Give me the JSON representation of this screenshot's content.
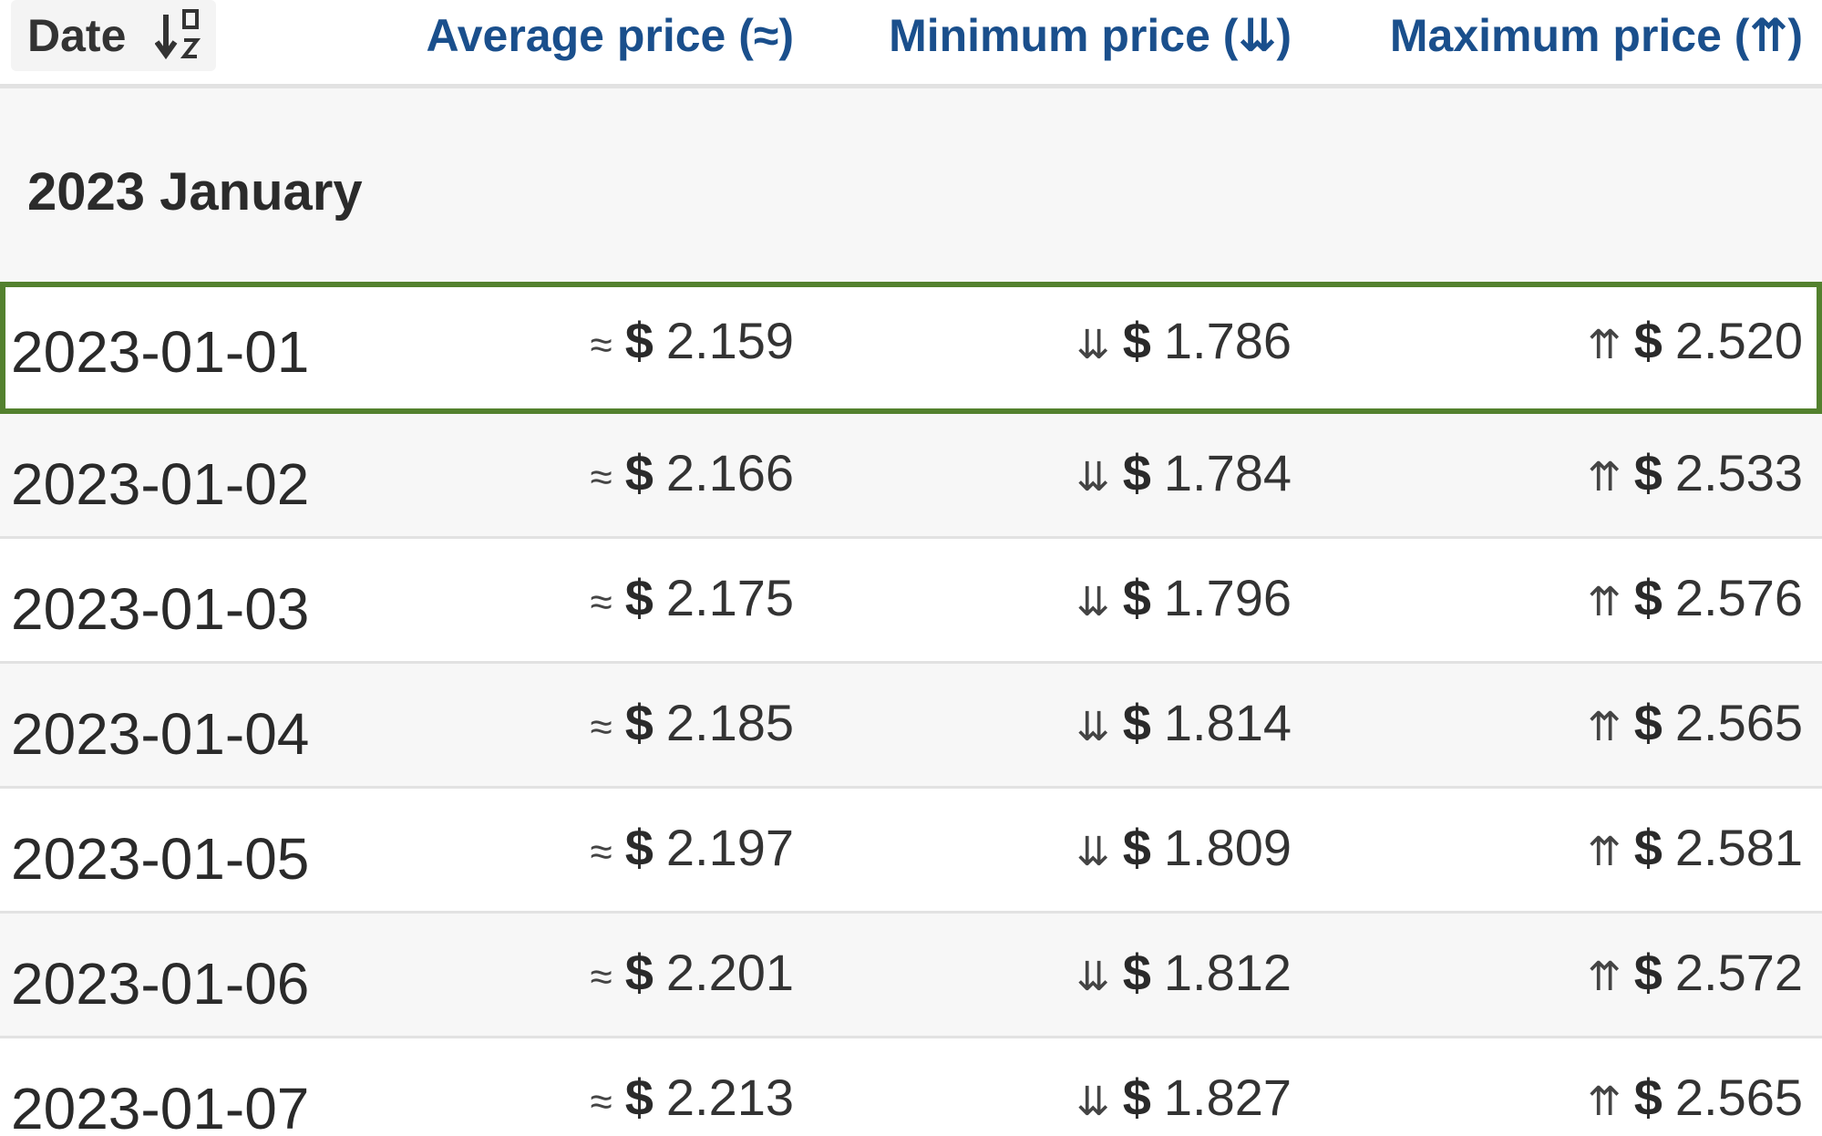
{
  "header": {
    "date": "Date",
    "average": "Average price (≈)",
    "minimum": "Minimum price (⇊)",
    "maximum": "Maximum price (⇈)"
  },
  "group": "2023 January",
  "rows": [
    {
      "date": "2023-01-01",
      "average": {
        "symbol": "≈",
        "currency": "$",
        "value": "2.159"
      },
      "minimum": {
        "symbol": "⇊",
        "currency": "$",
        "value": "1.786"
      },
      "maximum": {
        "symbol": "⇈",
        "currency": "$",
        "value": "2.520"
      }
    },
    {
      "date": "2023-01-02",
      "average": {
        "symbol": "≈",
        "currency": "$",
        "value": "2.166"
      },
      "minimum": {
        "symbol": "⇊",
        "currency": "$",
        "value": "1.784"
      },
      "maximum": {
        "symbol": "⇈",
        "currency": "$",
        "value": "2.533"
      }
    },
    {
      "date": "2023-01-03",
      "average": {
        "symbol": "≈",
        "currency": "$",
        "value": "2.175"
      },
      "minimum": {
        "symbol": "⇊",
        "currency": "$",
        "value": "1.796"
      },
      "maximum": {
        "symbol": "⇈",
        "currency": "$",
        "value": "2.576"
      }
    },
    {
      "date": "2023-01-04",
      "average": {
        "symbol": "≈",
        "currency": "$",
        "value": "2.185"
      },
      "minimum": {
        "symbol": "⇊",
        "currency": "$",
        "value": "1.814"
      },
      "maximum": {
        "symbol": "⇈",
        "currency": "$",
        "value": "2.565"
      }
    },
    {
      "date": "2023-01-05",
      "average": {
        "symbol": "≈",
        "currency": "$",
        "value": "2.197"
      },
      "minimum": {
        "symbol": "⇊",
        "currency": "$",
        "value": "1.809"
      },
      "maximum": {
        "symbol": "⇈",
        "currency": "$",
        "value": "2.581"
      }
    },
    {
      "date": "2023-01-06",
      "average": {
        "symbol": "≈",
        "currency": "$",
        "value": "2.201"
      },
      "minimum": {
        "symbol": "⇊",
        "currency": "$",
        "value": "1.812"
      },
      "maximum": {
        "symbol": "⇈",
        "currency": "$",
        "value": "2.572"
      }
    },
    {
      "date": "2023-01-07",
      "average": {
        "symbol": "≈",
        "currency": "$",
        "value": "2.213"
      },
      "minimum": {
        "symbol": "⇊",
        "currency": "$",
        "value": "1.827"
      },
      "maximum": {
        "symbol": "⇈",
        "currency": "$",
        "value": "2.565"
      }
    }
  ]
}
